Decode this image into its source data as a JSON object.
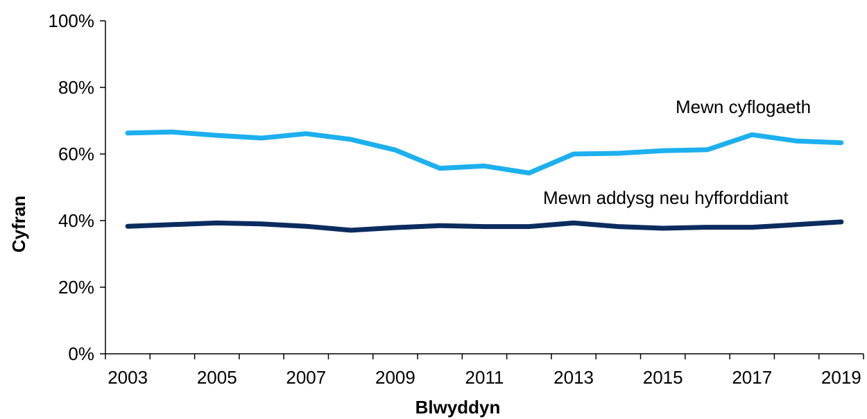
{
  "chart_data": {
    "type": "line",
    "xlabel": "Blwyddyn",
    "ylabel": "Cyfran",
    "x": [
      2003,
      2004,
      2005,
      2006,
      2007,
      2008,
      2009,
      2010,
      2011,
      2012,
      2013,
      2014,
      2015,
      2016,
      2017,
      2018,
      2019
    ],
    "x_tick_labels": [
      "2003",
      "2005",
      "2007",
      "2009",
      "2011",
      "2013",
      "2015",
      "2017",
      "2019"
    ],
    "y_tick_labels": [
      "0%",
      "20%",
      "40%",
      "60%",
      "80%",
      "100%"
    ],
    "ylim": [
      0,
      100
    ],
    "grid": false,
    "legend": "none (series labelled directly on chart)",
    "series": [
      {
        "name": "Mewn cyflogaeth",
        "color": "#1cb0ee",
        "values": [
          66.3,
          66.6,
          65.6,
          64.8,
          66.1,
          64.4,
          61.2,
          55.7,
          56.4,
          54.3,
          60.0,
          60.2,
          61.0,
          61.3,
          65.8,
          63.9,
          63.4
        ]
      },
      {
        "name": "Mewn addysg neu hyfforddiant",
        "color": "#0b2c5e",
        "values": [
          38.3,
          38.8,
          39.3,
          39.0,
          38.3,
          37.1,
          37.9,
          38.5,
          38.2,
          38.2,
          39.3,
          38.2,
          37.7,
          38.0,
          38.0,
          38.8,
          39.6
        ]
      }
    ]
  }
}
